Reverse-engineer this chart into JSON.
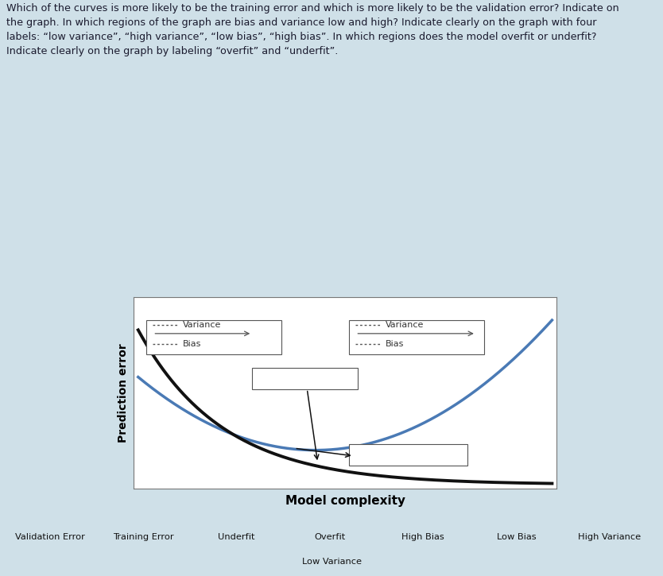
{
  "bg_color": "#cfe0e8",
  "text_color": "#1a1a2e",
  "question_text": "Which of the curves is more likely to be the training error and which is more likely to be the validation error? Indicate on\nthe graph. In which regions of the graph are bias and variance low and high? Indicate clearly on the graph with four\nlabels: “low variance”, “high variance”, “low bias”, “high bias”. In which regions does the model overfit or underfit?\nIndicate clearly on the graph by labeling “overfit” and “underfit”.",
  "xlabel": "Model complexity",
  "ylabel": "Prediction error",
  "validation_color": "#4a7ab5",
  "training_color": "#111111",
  "bottom_labels_row1": [
    "Validation Error",
    "Training Error",
    "Underfit",
    "Overfit",
    "High Bias",
    "Low Bias",
    "High Variance"
  ],
  "bottom_label_row2": "Low Variance"
}
